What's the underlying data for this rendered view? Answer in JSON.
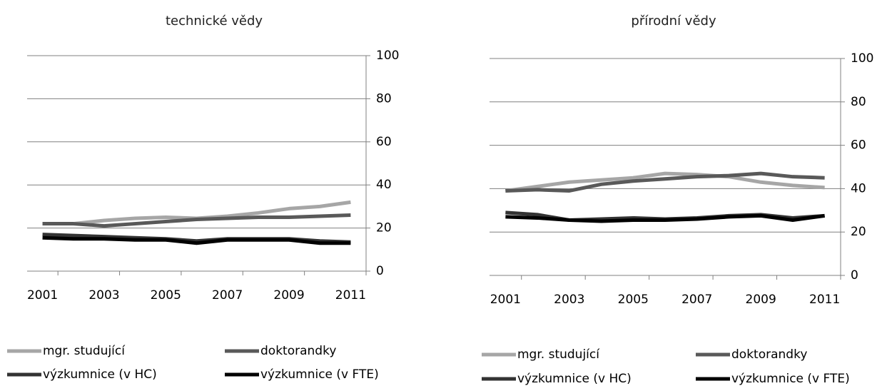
{
  "chart_data": [
    {
      "type": "line",
      "title": "technické vědy",
      "categories": [
        "2001",
        null,
        "2003",
        null,
        "2005",
        null,
        "2007",
        null,
        "2009",
        null,
        "2011"
      ],
      "ylim": [
        0,
        100
      ],
      "yticks": [
        0,
        20,
        40,
        60,
        80,
        100
      ],
      "grid": true,
      "series": [
        {
          "name": "mgr. studující",
          "color": "#a6a6a6",
          "values": [
            22,
            22,
            23.5,
            24.5,
            25,
            24.5,
            25.5,
            27,
            29,
            30,
            32
          ]
        },
        {
          "name": "doktorandky",
          "color": "#595959",
          "values": [
            22,
            22,
            21,
            22,
            23,
            24,
            24.5,
            25,
            25,
            25.5,
            26
          ]
        },
        {
          "name": "výzkumnice (v HC)",
          "color": "#333333",
          "values": [
            17,
            16.5,
            16,
            15.5,
            15,
            14,
            15,
            15,
            15,
            14,
            13.5
          ]
        },
        {
          "name": "výzkumnice (v FTE)",
          "color": "#000000",
          "values": [
            15.5,
            15,
            15,
            14.5,
            14.5,
            13,
            14.5,
            14.5,
            14.5,
            13,
            13
          ]
        }
      ]
    },
    {
      "type": "line",
      "title": "přírodní vědy",
      "categories": [
        "2001",
        null,
        "2003",
        null,
        "2005",
        null,
        "2007",
        null,
        "2009",
        null,
        "2011"
      ],
      "ylim": [
        0,
        100
      ],
      "yticks": [
        0,
        20,
        40,
        60,
        80,
        100
      ],
      "grid": true,
      "series": [
        {
          "name": "mgr. studující",
          "color": "#a6a6a6",
          "values": [
            39,
            41,
            43,
            44,
            45,
            47,
            46.5,
            45.5,
            43,
            41.5,
            40.5
          ]
        },
        {
          "name": "doktorandky",
          "color": "#595959",
          "values": [
            39,
            39.5,
            39,
            42,
            43.5,
            44.5,
            45.5,
            46,
            47,
            45.5,
            45
          ]
        },
        {
          "name": "výzkumnice (v HC)",
          "color": "#333333",
          "values": [
            29,
            28,
            25.5,
            26,
            26.5,
            26,
            26.5,
            27.5,
            28,
            26.5,
            27.5
          ]
        },
        {
          "name": "výzkumnice (v FTE)",
          "color": "#000000",
          "values": [
            27,
            26.5,
            25.5,
            25,
            25.5,
            25.5,
            26,
            27,
            27.5,
            25.5,
            27.5
          ]
        }
      ]
    }
  ]
}
